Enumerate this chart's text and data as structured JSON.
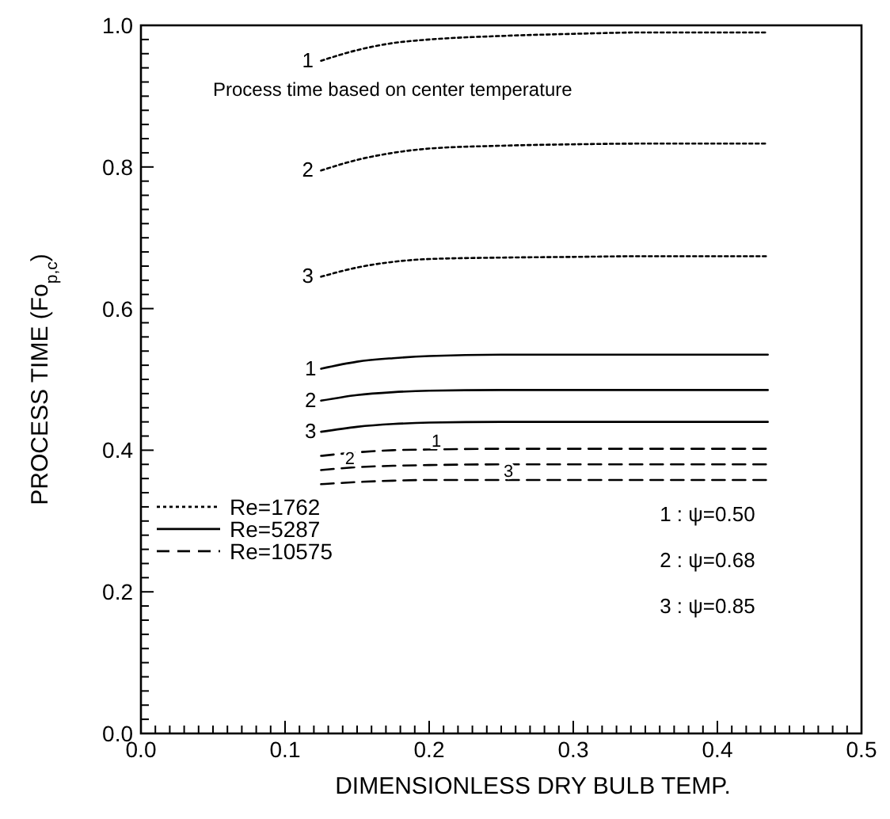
{
  "chart_data": {
    "type": "line",
    "xlabel": "DIMENSIONLESS DRY BULB TEMP.",
    "ylabel": "PROCESS TIME  (Fo$_{p,c}$)",
    "xlim": [
      0,
      0.5
    ],
    "ylim": [
      0,
      1
    ],
    "xticks": [
      {
        "value": 0,
        "label": "0.0"
      },
      {
        "value": 0.01,
        "label": null
      },
      {
        "value": 0.02,
        "label": null
      },
      {
        "value": 0.03,
        "label": null
      },
      {
        "value": 0.04,
        "label": null
      },
      {
        "value": 0.05,
        "label": null
      },
      {
        "value": 0.06,
        "label": null
      },
      {
        "value": 0.07,
        "label": null
      },
      {
        "value": 0.08,
        "label": null
      },
      {
        "value": 0.09,
        "label": null
      },
      {
        "value": 0.1,
        "label": "0.1"
      },
      {
        "value": 0.11,
        "label": null
      },
      {
        "value": 0.12,
        "label": null
      },
      {
        "value": 0.13,
        "label": null
      },
      {
        "value": 0.14,
        "label": null
      },
      {
        "value": 0.15,
        "label": null
      },
      {
        "value": 0.16,
        "label": null
      },
      {
        "value": 0.17,
        "label": null
      },
      {
        "value": 0.18,
        "label": null
      },
      {
        "value": 0.19,
        "label": null
      },
      {
        "value": 0.2,
        "label": "0.2"
      },
      {
        "value": 0.21,
        "label": null
      },
      {
        "value": 0.22,
        "label": null
      },
      {
        "value": 0.23,
        "label": null
      },
      {
        "value": 0.24,
        "label": null
      },
      {
        "value": 0.25,
        "label": null
      },
      {
        "value": 0.26,
        "label": null
      },
      {
        "value": 0.27,
        "label": null
      },
      {
        "value": 0.28,
        "label": null
      },
      {
        "value": 0.29,
        "label": null
      },
      {
        "value": 0.3,
        "label": "0.3"
      },
      {
        "value": 0.31,
        "label": null
      },
      {
        "value": 0.32,
        "label": null
      },
      {
        "value": 0.33,
        "label": null
      },
      {
        "value": 0.34,
        "label": null
      },
      {
        "value": 0.35,
        "label": null
      },
      {
        "value": 0.36,
        "label": null
      },
      {
        "value": 0.37,
        "label": null
      },
      {
        "value": 0.38,
        "label": null
      },
      {
        "value": 0.39,
        "label": null
      },
      {
        "value": 0.4,
        "label": "0.4"
      },
      {
        "value": 0.41,
        "label": null
      },
      {
        "value": 0.42,
        "label": null
      },
      {
        "value": 0.43,
        "label": null
      },
      {
        "value": 0.44,
        "label": null
      },
      {
        "value": 0.45,
        "label": null
      },
      {
        "value": 0.46,
        "label": null
      },
      {
        "value": 0.47,
        "label": null
      },
      {
        "value": 0.48,
        "label": null
      },
      {
        "value": 0.49,
        "label": null
      },
      {
        "value": 0.5,
        "label": "0.5"
      }
    ],
    "yticks": [
      {
        "value": 0,
        "label": "0.0"
      },
      {
        "value": 0.02,
        "label": null
      },
      {
        "value": 0.04,
        "label": null
      },
      {
        "value": 0.06,
        "label": null
      },
      {
        "value": 0.08,
        "label": null
      },
      {
        "value": 0.1,
        "label": null
      },
      {
        "value": 0.12,
        "label": null
      },
      {
        "value": 0.14,
        "label": null
      },
      {
        "value": 0.16,
        "label": null
      },
      {
        "value": 0.18,
        "label": null
      },
      {
        "value": 0.2,
        "label": "0.2"
      },
      {
        "value": 0.22,
        "label": null
      },
      {
        "value": 0.24,
        "label": null
      },
      {
        "value": 0.26,
        "label": null
      },
      {
        "value": 0.28,
        "label": null
      },
      {
        "value": 0.3,
        "label": null
      },
      {
        "value": 0.32,
        "label": null
      },
      {
        "value": 0.34,
        "label": null
      },
      {
        "value": 0.36,
        "label": null
      },
      {
        "value": 0.38,
        "label": null
      },
      {
        "value": 0.4,
        "label": "0.4"
      },
      {
        "value": 0.42,
        "label": null
      },
      {
        "value": 0.44,
        "label": null
      },
      {
        "value": 0.46,
        "label": null
      },
      {
        "value": 0.48,
        "label": null
      },
      {
        "value": 0.5,
        "label": null
      },
      {
        "value": 0.52,
        "label": null
      },
      {
        "value": 0.54,
        "label": null
      },
      {
        "value": 0.56,
        "label": null
      },
      {
        "value": 0.58,
        "label": null
      },
      {
        "value": 0.6,
        "label": "0.6"
      },
      {
        "value": 0.62,
        "label": null
      },
      {
        "value": 0.64,
        "label": null
      },
      {
        "value": 0.66,
        "label": null
      },
      {
        "value": 0.68,
        "label": null
      },
      {
        "value": 0.7,
        "label": null
      },
      {
        "value": 0.72,
        "label": null
      },
      {
        "value": 0.74,
        "label": null
      },
      {
        "value": 0.76,
        "label": null
      },
      {
        "value": 0.78,
        "label": null
      },
      {
        "value": 0.8,
        "label": "0.8"
      },
      {
        "value": 0.82,
        "label": null
      },
      {
        "value": 0.84,
        "label": null
      },
      {
        "value": 0.86,
        "label": null
      },
      {
        "value": 0.88,
        "label": null
      },
      {
        "value": 0.9,
        "label": null
      },
      {
        "value": 0.92,
        "label": null
      },
      {
        "value": 0.94,
        "label": null
      },
      {
        "value": 0.96,
        "label": null
      },
      {
        "value": 0.98,
        "label": null
      },
      {
        "value": 1,
        "label": "1.0"
      }
    ],
    "x": [
      0.125,
      0.15,
      0.175,
      0.2,
      0.25,
      0.3,
      0.35,
      0.4,
      0.435
    ],
    "grid": false,
    "legend": "left",
    "marker": "none",
    "series": [
      {
        "name": "Re=1762",
        "color": "#000000",
        "line_style": "dotted",
        "values": [
          0.95,
          0.965,
          0.975,
          0.98,
          0.985,
          0.988,
          0.99,
          0.99,
          0.99
        ]
      },
      {
        "color": "#000000",
        "line_style": "dotted",
        "values": [
          0.795,
          0.81,
          0.82,
          0.826,
          0.83,
          0.832,
          0.833,
          0.833,
          0.833
        ]
      },
      {
        "color": "#000000",
        "line_style": "dotted",
        "values": [
          0.645,
          0.658,
          0.666,
          0.67,
          0.672,
          0.673,
          0.674,
          0.674,
          0.674
        ]
      },
      {
        "name": "Re=5287",
        "color": "#000000",
        "line_style": "solid",
        "values": [
          0.515,
          0.525,
          0.53,
          0.533,
          0.535,
          0.535,
          0.535,
          0.535,
          0.535
        ]
      },
      {
        "color": "#000000",
        "line_style": "solid",
        "values": [
          0.47,
          0.478,
          0.482,
          0.484,
          0.485,
          0.485,
          0.485,
          0.485,
          0.485
        ]
      },
      {
        "color": "#000000",
        "line_style": "solid",
        "values": [
          0.426,
          0.433,
          0.437,
          0.439,
          0.44,
          0.44,
          0.44,
          0.44,
          0.44
        ]
      },
      {
        "name": "Re=10575",
        "color": "#000000",
        "line_style": "dashed",
        "values": [
          0.392,
          0.397,
          0.4,
          0.401,
          0.402,
          0.402,
          0.402,
          0.402,
          0.402
        ]
      },
      {
        "color": "#000000",
        "line_style": "dashed",
        "values": [
          0.372,
          0.376,
          0.378,
          0.379,
          0.38,
          0.38,
          0.38,
          0.38,
          0.38
        ]
      },
      {
        "color": "#000000",
        "line_style": "dashed",
        "values": [
          0.352,
          0.355,
          0.357,
          0.358,
          0.358,
          0.358,
          0.358,
          0.358,
          0.358
        ]
      }
    ],
    "annotations": [
      "Process time based on center temperature",
      "1 : ψ=0.50",
      "2 : ψ=0.68",
      "3 : ψ=0.85",
      {
        "text": "1",
        "x": 0.123,
        "y": 0.95
      },
      {
        "text": "2",
        "x": 0.123,
        "y": 0.795
      },
      {
        "text": "3",
        "x": 0.123,
        "y": 0.645
      },
      {
        "text": "1",
        "x": 0.125,
        "y": 0.515
      },
      {
        "text": "2",
        "x": 0.125,
        "y": 0.47
      },
      {
        "text": "3",
        "x": 0.125,
        "y": 0.426
      },
      {
        "text": "1",
        "x": 0.205,
        "y": 0.401
      },
      {
        "text": "2",
        "x": 0.145,
        "y": 0.376
      },
      {
        "text": "3",
        "x": 0.255,
        "y": 0.358
      }
    ]
  }
}
